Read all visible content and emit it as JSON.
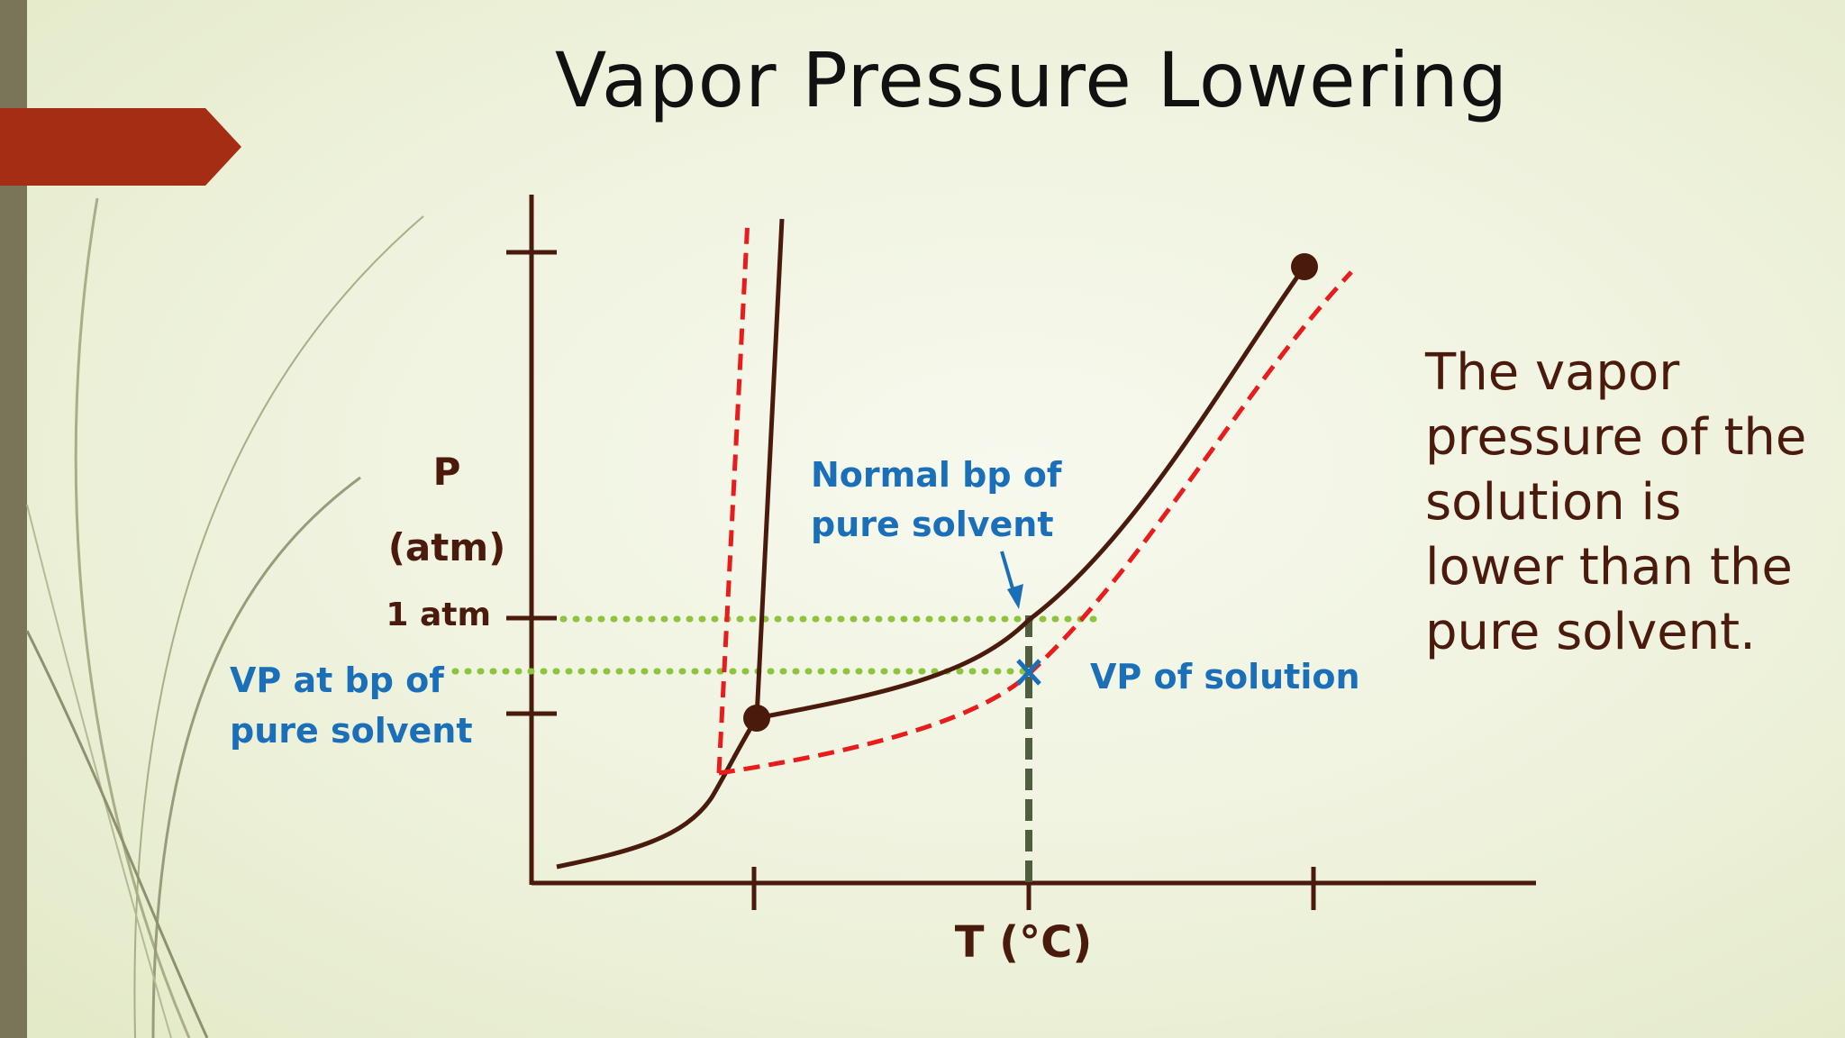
{
  "slide": {
    "title": "Vapor Pressure Lowering",
    "side_text_lines": [
      "The vapor",
      "pressure of the",
      "solution is",
      "lower than the",
      "pure solvent."
    ]
  },
  "diagram": {
    "y_axis_label_line1": "P",
    "y_axis_label_line2": "(atm)",
    "x_axis_label": "T (°C)",
    "one_atm_label": "1 atm",
    "normal_bp_label_line1": "Normal bp of",
    "normal_bp_label_line2": "pure solvent",
    "vp_at_bp_label_line1": "VP at bp of",
    "vp_at_bp_label_line2": "pure solvent",
    "vp_solution_label": "VP of solution"
  },
  "colors": {
    "curve": "#4a1a0c",
    "solution_curve": "#e81c1c",
    "annotation_text": "#1a6fb8",
    "guide_dots": "#8cc43c",
    "vertical_dash": "#4e5e3e",
    "accent": "#a52d14",
    "side_text": "#4a1a0c"
  },
  "icons": [
    "arrow-down-icon",
    "x-mark-icon",
    "triple-point-dot",
    "critical-point-dot"
  ]
}
